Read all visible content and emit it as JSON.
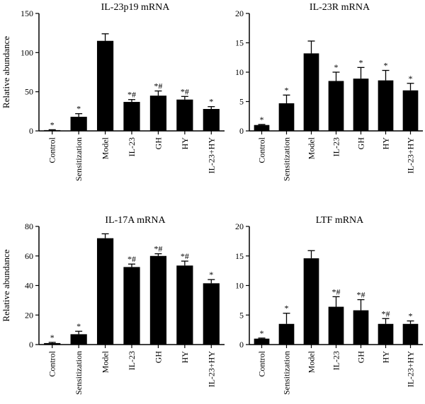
{
  "chart_data": [
    {
      "type": "bar",
      "title": "IL-23p19 mRNA",
      "ylabel": "Relative abundance",
      "xlabel": "",
      "ylim": [
        0,
        150
      ],
      "yticks": [
        0,
        50,
        100,
        150
      ],
      "categories": [
        "Control",
        "Sensitization",
        "Model",
        "IL-23",
        "GH",
        "HY",
        "IL-23+HY"
      ],
      "values": [
        1,
        18,
        115,
        37,
        45,
        40,
        28
      ],
      "errors": [
        0.5,
        4,
        9,
        3,
        6,
        4,
        3
      ],
      "annotations": [
        "*",
        "*",
        "",
        "*#",
        "*#",
        "*#",
        "*"
      ],
      "bar_color": "#000000"
    },
    {
      "type": "bar",
      "title": "IL-23R mRNA",
      "ylabel": "",
      "xlabel": "",
      "ylim": [
        0,
        20
      ],
      "yticks": [
        0,
        5,
        10,
        15,
        20
      ],
      "categories": [
        "Control",
        "Sensitization",
        "Model",
        "IL-23",
        "GH",
        "HY",
        "IL-23+HY"
      ],
      "values": [
        1,
        4.7,
        13.2,
        8.5,
        8.9,
        8.6,
        6.9
      ],
      "errors": [
        0.1,
        1.4,
        2.1,
        1.5,
        1.9,
        1.7,
        1.2
      ],
      "annotations": [
        "*",
        "*",
        "",
        "*",
        "*",
        "*",
        "*"
      ],
      "bar_color": "#000000"
    },
    {
      "type": "bar",
      "title": "IL-17A mRNA",
      "ylabel": "Relative abundance",
      "xlabel": "",
      "ylim": [
        0,
        80
      ],
      "yticks": [
        0,
        20,
        40,
        60,
        80
      ],
      "categories": [
        "Control",
        "Sensitization",
        "Model",
        "IL-23",
        "GH",
        "HY",
        "IL-23+HY"
      ],
      "values": [
        1,
        7,
        72,
        52.5,
        60,
        53.5,
        41.5
      ],
      "errors": [
        0.5,
        2,
        3,
        2,
        1.5,
        3,
        2.5
      ],
      "annotations": [
        "*",
        "*",
        "",
        "*#",
        "*#",
        "*#",
        "*"
      ],
      "bar_color": "#000000"
    },
    {
      "type": "bar",
      "title": "LTF mRNA",
      "ylabel": "",
      "xlabel": "",
      "ylim": [
        0,
        20
      ],
      "yticks": [
        0,
        5,
        10,
        15,
        20
      ],
      "categories": [
        "Control",
        "Sensitization",
        "Model",
        "IL-23",
        "GH",
        "HY",
        "IL-23+HY"
      ],
      "values": [
        1,
        3.5,
        14.6,
        6.4,
        5.8,
        3.5,
        3.5
      ],
      "errors": [
        0.1,
        1.8,
        1.3,
        1.7,
        1.8,
        0.9,
        0.5
      ],
      "annotations": [
        "*",
        "*",
        "",
        "*#",
        "*#",
        "*#",
        "*"
      ],
      "bar_color": "#000000"
    }
  ]
}
